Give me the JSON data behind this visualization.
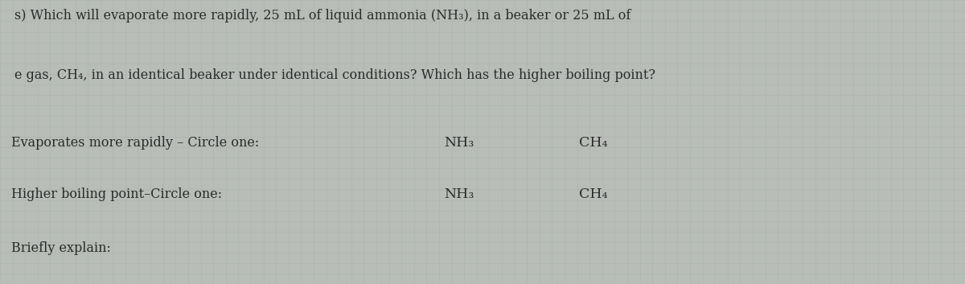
{
  "background_color": "#b8bdb8",
  "line1": "s) Which will evaporate more rapidly, 25 mL of liquid ammonia (NH₃), in a beaker or 25 mL of",
  "line2": "e gas, CH₄, in an identical beaker under identical conditions? Which has the higher boiling point?",
  "row1_left": "Evaporates more rapidly – Circle one:",
  "row1_mid": "NH₃",
  "row1_right": "CH₄",
  "row2_left": "Higher boiling point–Circle one:",
  "row2_mid": "NH₃",
  "row2_right": "CH₄",
  "row3_left": "Briefly explain:",
  "text_color": "#2a2a2a",
  "option_color": "#2a2a2a",
  "font_size_body": 11.5,
  "font_size_options": 12.5,
  "grid_color": "#a0a8a0",
  "grid_alpha": 0.5
}
